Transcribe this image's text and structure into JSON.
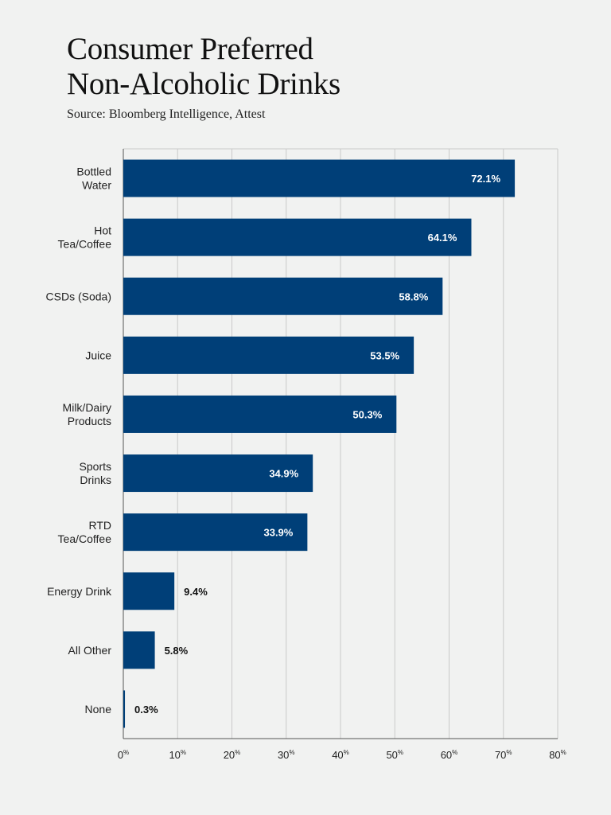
{
  "chart_data": {
    "type": "bar",
    "orientation": "horizontal",
    "title_lines": [
      "Consumer Preferred",
      "Non-Alcoholic Drinks"
    ],
    "subtitle": "Source: Bloomberg Intelligence, Attest",
    "categories": [
      [
        "Bottled",
        "Water"
      ],
      [
        "Hot",
        "Tea/Coffee"
      ],
      [
        "CSDs (Soda)"
      ],
      [
        "Juice"
      ],
      [
        "Milk/Dairy",
        "Products"
      ],
      [
        "Sports",
        "Drinks"
      ],
      [
        "RTD",
        "Tea/Coffee"
      ],
      [
        "Energy Drink"
      ],
      [
        "All Other"
      ],
      [
        "None"
      ]
    ],
    "values": [
      72.1,
      64.1,
      58.8,
      53.5,
      50.3,
      34.9,
      33.9,
      9.4,
      5.8,
      0.3
    ],
    "value_labels": [
      "72.1%",
      "64.1%",
      "58.8%",
      "53.5%",
      "50.3%",
      "34.9%",
      "33.9%",
      "9.4%",
      "5.8%",
      "0.3%"
    ],
    "xlim": [
      0,
      80
    ],
    "xticks": [
      0,
      10,
      20,
      30,
      40,
      50,
      60,
      70,
      80
    ],
    "xtick_unit": "%",
    "grid": true,
    "colors": {
      "bar": "#003f78",
      "grid": "#c9c9c9",
      "label_inside": "#ffffff",
      "label_outside": "#111111"
    }
  }
}
